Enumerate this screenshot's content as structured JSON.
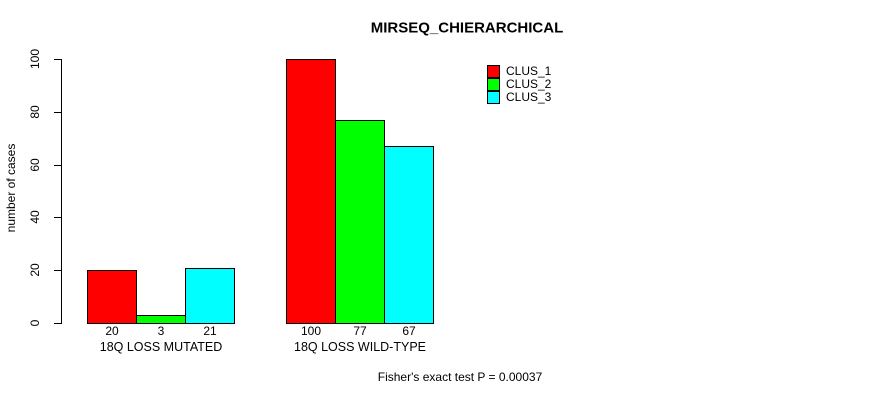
{
  "chart_data": {
    "type": "bar",
    "title": "MIRSEQ_CHIERARCHICAL",
    "ylabel": "number of cases",
    "xlabel": "",
    "categories": [
      "18Q LOSS MUTATED",
      "18Q LOSS WILD-TYPE"
    ],
    "series": [
      {
        "name": "CLUS_1",
        "color": "#ff0000",
        "values": [
          20,
          100
        ]
      },
      {
        "name": "CLUS_2",
        "color": "#00ff00",
        "values": [
          3,
          77
        ]
      },
      {
        "name": "CLUS_3",
        "color": "#00ffff",
        "values": [
          21,
          67
        ]
      }
    ],
    "ylim": [
      0,
      100
    ],
    "yticks": [
      0,
      20,
      40,
      60,
      80,
      100
    ],
    "show_value_labels": true,
    "bar_border_color": "#000000",
    "grid": false,
    "legend_position": "top-right",
    "annotation": "Fisher's exact test P = 0.00037",
    "background": "#ffffff"
  }
}
